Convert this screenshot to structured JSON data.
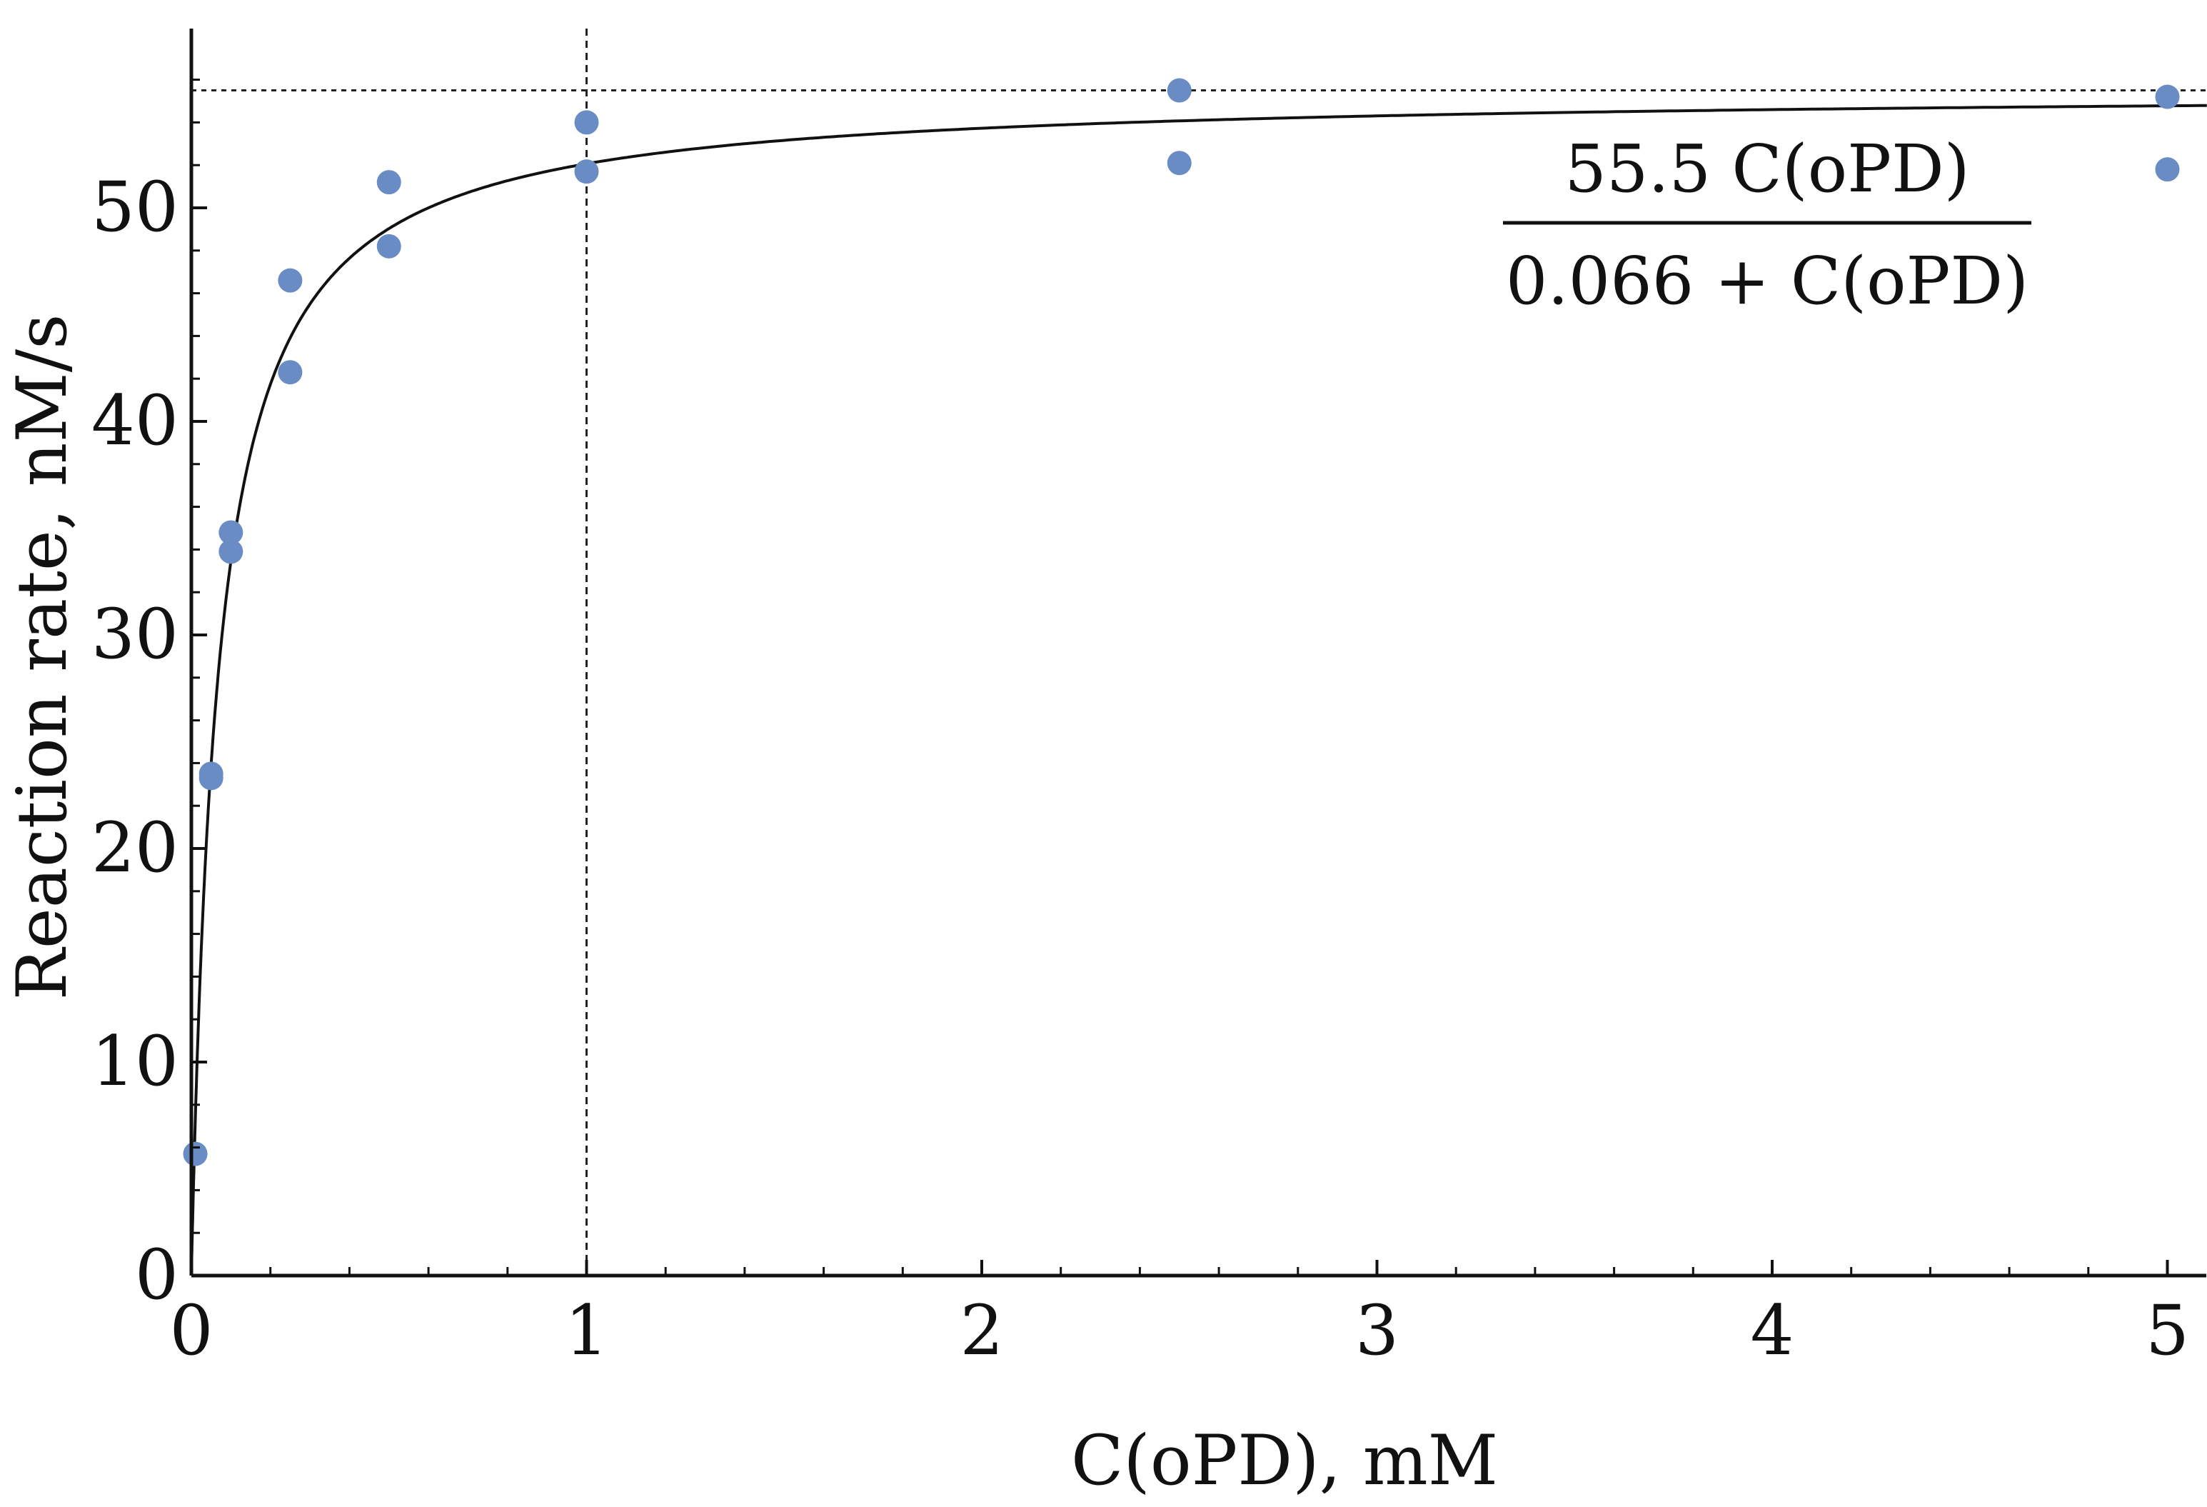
{
  "chart_data": {
    "type": "scatter",
    "xlabel": "C(oPD), mM",
    "ylabel": "Reaction rate, nM/s",
    "xlim": [
      0,
      5.1
    ],
    "ylim": [
      0,
      58
    ],
    "x_ticks": [
      0,
      1,
      2,
      3,
      4,
      5
    ],
    "y_ticks": [
      0,
      10,
      20,
      30,
      40,
      50
    ],
    "x_tick_labels": [
      "0",
      "1",
      "2",
      "3",
      "4",
      "5"
    ],
    "y_tick_labels": [
      "0",
      "10",
      "20",
      "30",
      "40",
      "50"
    ],
    "x_minor_step": 0.2,
    "y_minor_step": 2,
    "grid": false,
    "point_color": "#6a8cc4",
    "line_color": "#111111",
    "series": [
      {
        "type": "scatter",
        "points": [
          {
            "x": 0.01,
            "y": 5.7
          },
          {
            "x": 0.05,
            "y": 23.3
          },
          {
            "x": 0.05,
            "y": 23.5
          },
          {
            "x": 0.1,
            "y": 33.9
          },
          {
            "x": 0.1,
            "y": 34.8
          },
          {
            "x": 0.25,
            "y": 42.3
          },
          {
            "x": 0.25,
            "y": 46.6
          },
          {
            "x": 0.5,
            "y": 48.2
          },
          {
            "x": 0.5,
            "y": 51.2
          },
          {
            "x": 1.0,
            "y": 51.7
          },
          {
            "x": 1.0,
            "y": 54.0
          },
          {
            "x": 2.5,
            "y": 52.1
          },
          {
            "x": 2.5,
            "y": 55.5
          },
          {
            "x": 5.0,
            "y": 51.8
          },
          {
            "x": 5.0,
            "y": 55.2
          }
        ]
      },
      {
        "type": "line",
        "model": "michaelis-menten",
        "vmax": 55.5,
        "km": 0.066
      }
    ],
    "reference_lines": [
      {
        "orientation": "horizontal",
        "y": 55.5,
        "style": "dotted"
      },
      {
        "orientation": "vertical",
        "x": 1.0,
        "style": "dashed"
      }
    ],
    "annotation": {
      "numerator": "55.5 C(oPD)",
      "denominator": "0.066 + C(oPD)"
    }
  }
}
